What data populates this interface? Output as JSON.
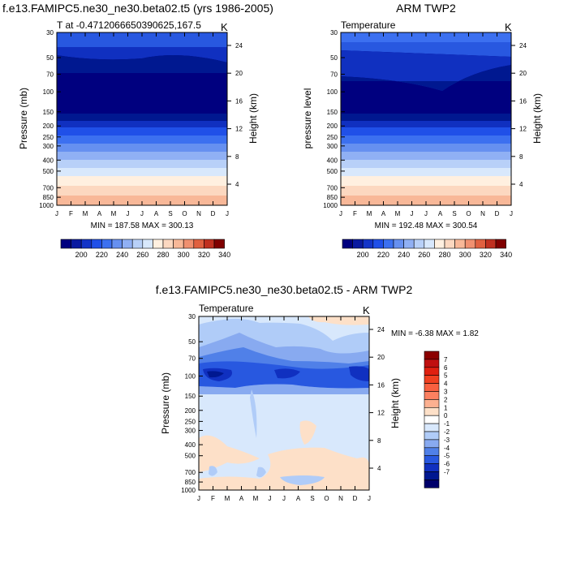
{
  "chart_data": [
    {
      "type": "heatmap",
      "title": "f.e13.FAMIPC5.ne30_ne30.beta02.t5 (yrs 1986-2005)",
      "subtitle_left": "T at -0.4712066650390625,167.5",
      "units": "K",
      "ylabel": "Pressure (mb)",
      "ylabel_right": "Height (km)",
      "x_ticks": [
        "J",
        "F",
        "M",
        "A",
        "M",
        "J",
        "J",
        "A",
        "S",
        "O",
        "N",
        "D",
        "J"
      ],
      "y_ticks": [
        "30",
        "50",
        "70",
        "100",
        "150",
        "200",
        "250",
        "300",
        "400",
        "500",
        "700",
        "850",
        "1000"
      ],
      "y_right_ticks": [
        "24",
        "20",
        "16",
        "12",
        "8",
        "4"
      ],
      "stats": "MIN = 187.58 MAX = 300.13",
      "colorbar": {
        "orientation": "horizontal",
        "labels": [
          "200",
          "220",
          "240",
          "260",
          "280",
          "300",
          "320",
          "340"
        ],
        "colors": [
          "#00007f",
          "#0a1aa0",
          "#1435c8",
          "#2050e8",
          "#3c70f0",
          "#6690f0",
          "#90b0f4",
          "#b8d0f8",
          "#d8e8fc",
          "#fff0e0",
          "#fcd8c0",
          "#f8b898",
          "#f09070",
          "#e06040",
          "#c03020",
          "#800000"
        ]
      }
    },
    {
      "type": "heatmap",
      "title": "ARM TWP2",
      "subtitle_left": "Temperature",
      "units": "K",
      "ylabel": "pressure level",
      "ylabel_right": "Height (km)",
      "x_ticks": [
        "J",
        "F",
        "M",
        "A",
        "M",
        "J",
        "J",
        "A",
        "S",
        "O",
        "N",
        "D",
        "J"
      ],
      "y_ticks": [
        "30",
        "50",
        "70",
        "100",
        "150",
        "200",
        "250",
        "300",
        "400",
        "500",
        "700",
        "850",
        "1000"
      ],
      "y_right_ticks": [
        "24",
        "20",
        "16",
        "12",
        "8",
        "4"
      ],
      "stats": "MIN = 192.48 MAX = 300.54",
      "colorbar": {
        "orientation": "horizontal",
        "labels": [
          "200",
          "220",
          "240",
          "260",
          "280",
          "300",
          "320",
          "340"
        ],
        "colors": [
          "#00007f",
          "#0a1aa0",
          "#1435c8",
          "#2050e8",
          "#3c70f0",
          "#6690f0",
          "#90b0f4",
          "#b8d0f8",
          "#d8e8fc",
          "#fff0e0",
          "#fcd8c0",
          "#f8b898",
          "#f09070",
          "#e06040",
          "#c03020",
          "#800000"
        ]
      }
    },
    {
      "type": "heatmap",
      "title": "f.e13.FAMIPC5.ne30_ne30.beta02.t5 - ARM TWP2",
      "subtitle_left": "Temperature",
      "units": "K",
      "ylabel": "Pressure (mb)",
      "ylabel_right": "Height (km)",
      "x_ticks": [
        "J",
        "F",
        "M",
        "A",
        "M",
        "J",
        "J",
        "A",
        "S",
        "O",
        "N",
        "D",
        "J"
      ],
      "y_ticks": [
        "30",
        "50",
        "70",
        "100",
        "150",
        "200",
        "250",
        "300",
        "400",
        "500",
        "700",
        "850",
        "1000"
      ],
      "y_right_ticks": [
        "24",
        "20",
        "16",
        "12",
        "8",
        "4"
      ],
      "stats": "MIN = -6.38 MAX =  1.82",
      "colorbar": {
        "orientation": "vertical",
        "labels": [
          "7",
          "6",
          "5",
          "4",
          "3",
          "2",
          "1",
          "0",
          "-1",
          "-2",
          "-3",
          "-4",
          "-5",
          "-6",
          "-7"
        ],
        "colors": [
          "#8b0000",
          "#c01010",
          "#e02010",
          "#f04020",
          "#f86040",
          "#fc8060",
          "#fcb090",
          "#fde0c8",
          "#ffffff",
          "#d8e8fc",
          "#b0ccf8",
          "#88aaf0",
          "#5080e8",
          "#2858e0",
          "#1030c0",
          "#001890",
          "#00006a"
        ]
      }
    }
  ]
}
